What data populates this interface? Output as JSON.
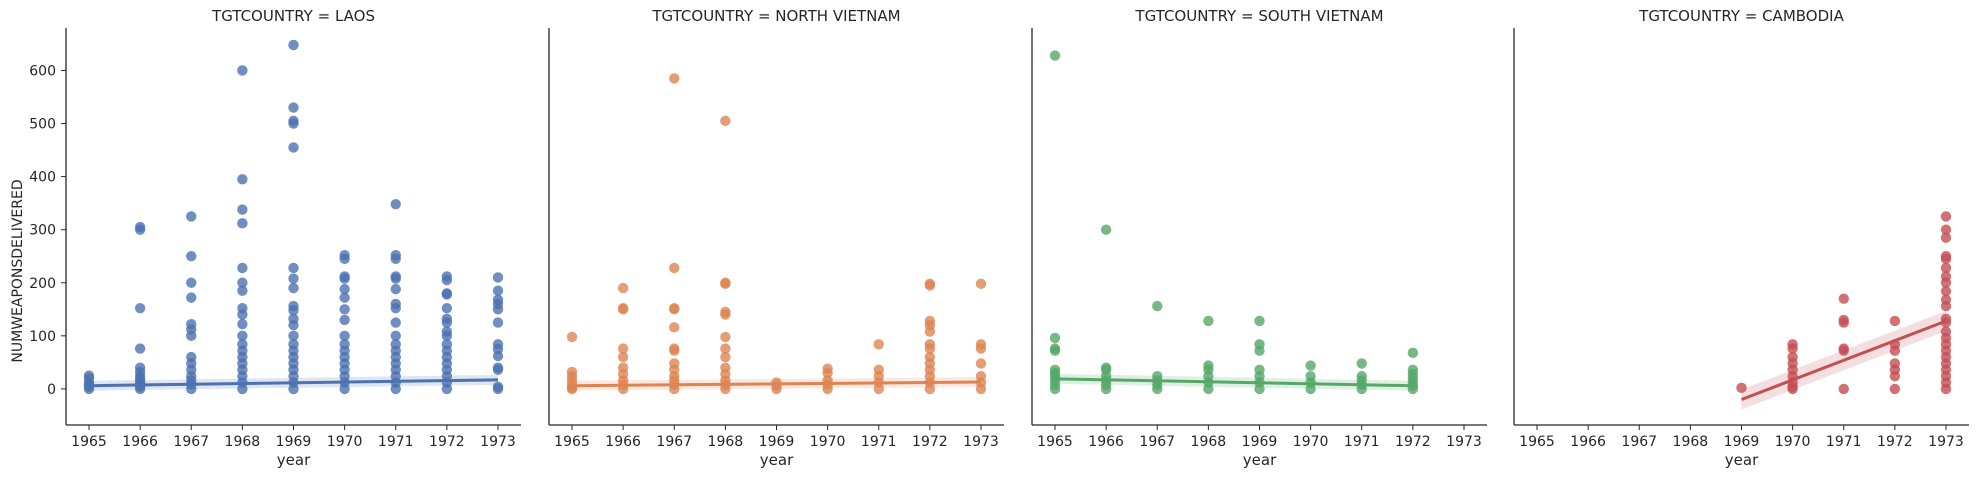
{
  "chart_data": {
    "type": "scatter",
    "x_label": "year",
    "y_label": "NUMWEAPONSDELIVERED",
    "xlim": [
      1964.55,
      1973.45
    ],
    "ylim": [
      -68,
      680
    ],
    "x_ticks": [
      "1965",
      "1966",
      "1967",
      "1968",
      "1969",
      "1970",
      "1971",
      "1972",
      "1973"
    ],
    "y_ticks": [
      0,
      100,
      200,
      300,
      400,
      500,
      600
    ],
    "grid": false,
    "panels": [
      {
        "title": "TGTCOUNTRY = LAOS",
        "color": "#4c72b0",
        "points": [
          [
            1965,
            25
          ],
          [
            1965,
            20
          ],
          [
            1965,
            12
          ],
          [
            1965,
            8
          ],
          [
            1965,
            4
          ],
          [
            1965,
            0
          ],
          [
            1966,
            305
          ],
          [
            1966,
            300
          ],
          [
            1966,
            152
          ],
          [
            1966,
            76
          ],
          [
            1966,
            40
          ],
          [
            1966,
            32
          ],
          [
            1966,
            24
          ],
          [
            1966,
            18
          ],
          [
            1966,
            12
          ],
          [
            1966,
            8
          ],
          [
            1966,
            4
          ],
          [
            1966,
            0
          ],
          [
            1967,
            325
          ],
          [
            1967,
            250
          ],
          [
            1967,
            200
          ],
          [
            1967,
            172
          ],
          [
            1967,
            122
          ],
          [
            1967,
            112
          ],
          [
            1967,
            100
          ],
          [
            1967,
            60
          ],
          [
            1967,
            48
          ],
          [
            1967,
            36
          ],
          [
            1967,
            24
          ],
          [
            1967,
            16
          ],
          [
            1967,
            8
          ],
          [
            1967,
            0
          ],
          [
            1968,
            600
          ],
          [
            1968,
            395
          ],
          [
            1968,
            338
          ],
          [
            1968,
            312
          ],
          [
            1968,
            228
          ],
          [
            1968,
            200
          ],
          [
            1968,
            185
          ],
          [
            1968,
            152
          ],
          [
            1968,
            140
          ],
          [
            1968,
            122
          ],
          [
            1968,
            100
          ],
          [
            1968,
            84
          ],
          [
            1968,
            72
          ],
          [
            1968,
            60
          ],
          [
            1968,
            48
          ],
          [
            1968,
            36
          ],
          [
            1968,
            24
          ],
          [
            1968,
            12
          ],
          [
            1968,
            0
          ],
          [
            1969,
            648
          ],
          [
            1969,
            530
          ],
          [
            1969,
            505
          ],
          [
            1969,
            500
          ],
          [
            1969,
            455
          ],
          [
            1969,
            228
          ],
          [
            1969,
            208
          ],
          [
            1969,
            190
          ],
          [
            1969,
            156
          ],
          [
            1969,
            148
          ],
          [
            1969,
            132
          ],
          [
            1969,
            120
          ],
          [
            1969,
            100
          ],
          [
            1969,
            84
          ],
          [
            1969,
            72
          ],
          [
            1969,
            60
          ],
          [
            1969,
            48
          ],
          [
            1969,
            36
          ],
          [
            1969,
            24
          ],
          [
            1969,
            12
          ],
          [
            1969,
            0
          ],
          [
            1970,
            252
          ],
          [
            1970,
            245
          ],
          [
            1970,
            212
          ],
          [
            1970,
            208
          ],
          [
            1970,
            188
          ],
          [
            1970,
            172
          ],
          [
            1970,
            150
          ],
          [
            1970,
            130
          ],
          [
            1970,
            100
          ],
          [
            1970,
            84
          ],
          [
            1970,
            72
          ],
          [
            1970,
            60
          ],
          [
            1970,
            48
          ],
          [
            1970,
            36
          ],
          [
            1970,
            24
          ],
          [
            1970,
            12
          ],
          [
            1970,
            0
          ],
          [
            1971,
            348
          ],
          [
            1971,
            252
          ],
          [
            1971,
            245
          ],
          [
            1971,
            212
          ],
          [
            1971,
            208
          ],
          [
            1971,
            188
          ],
          [
            1971,
            160
          ],
          [
            1971,
            152
          ],
          [
            1971,
            125
          ],
          [
            1971,
            100
          ],
          [
            1971,
            84
          ],
          [
            1971,
            72
          ],
          [
            1971,
            60
          ],
          [
            1971,
            48
          ],
          [
            1971,
            36
          ],
          [
            1971,
            24
          ],
          [
            1971,
            12
          ],
          [
            1971,
            0
          ],
          [
            1972,
            212
          ],
          [
            1972,
            205
          ],
          [
            1972,
            180
          ],
          [
            1972,
            178
          ],
          [
            1972,
            152
          ],
          [
            1972,
            132
          ],
          [
            1972,
            125
          ],
          [
            1972,
            108
          ],
          [
            1972,
            100
          ],
          [
            1972,
            84
          ],
          [
            1972,
            72
          ],
          [
            1972,
            60
          ],
          [
            1972,
            48
          ],
          [
            1972,
            36
          ],
          [
            1972,
            24
          ],
          [
            1972,
            12
          ],
          [
            1972,
            0
          ],
          [
            1973,
            210
          ],
          [
            1973,
            185
          ],
          [
            1973,
            168
          ],
          [
            1973,
            160
          ],
          [
            1973,
            150
          ],
          [
            1973,
            125
          ],
          [
            1973,
            84
          ],
          [
            1973,
            75
          ],
          [
            1973,
            62
          ],
          [
            1973,
            40
          ],
          [
            1973,
            36
          ],
          [
            1973,
            4
          ],
          [
            1973,
            0
          ]
        ],
        "fit": {
          "x": [
            1965,
            1973
          ],
          "y": [
            6,
            17
          ]
        }
      },
      {
        "title": "TGTCOUNTRY = NORTH VIETNAM",
        "color": "#dd8452",
        "points": [
          [
            1965,
            98
          ],
          [
            1965,
            32
          ],
          [
            1965,
            24
          ],
          [
            1965,
            16
          ],
          [
            1965,
            8
          ],
          [
            1965,
            2
          ],
          [
            1965,
            0
          ],
          [
            1966,
            190
          ],
          [
            1966,
            152
          ],
          [
            1966,
            150
          ],
          [
            1966,
            76
          ],
          [
            1966,
            60
          ],
          [
            1966,
            40
          ],
          [
            1966,
            28
          ],
          [
            1966,
            16
          ],
          [
            1966,
            8
          ],
          [
            1966,
            0
          ],
          [
            1967,
            585
          ],
          [
            1967,
            228
          ],
          [
            1967,
            152
          ],
          [
            1967,
            150
          ],
          [
            1967,
            116
          ],
          [
            1967,
            76
          ],
          [
            1967,
            72
          ],
          [
            1967,
            48
          ],
          [
            1967,
            36
          ],
          [
            1967,
            24
          ],
          [
            1967,
            16
          ],
          [
            1967,
            8
          ],
          [
            1967,
            0
          ],
          [
            1968,
            505
          ],
          [
            1968,
            200
          ],
          [
            1968,
            198
          ],
          [
            1968,
            145
          ],
          [
            1968,
            140
          ],
          [
            1968,
            98
          ],
          [
            1968,
            76
          ],
          [
            1968,
            60
          ],
          [
            1968,
            40
          ],
          [
            1968,
            28
          ],
          [
            1968,
            16
          ],
          [
            1968,
            8
          ],
          [
            1968,
            0
          ],
          [
            1969,
            12
          ],
          [
            1969,
            6
          ],
          [
            1969,
            0
          ],
          [
            1970,
            38
          ],
          [
            1970,
            30
          ],
          [
            1970,
            16
          ],
          [
            1970,
            8
          ],
          [
            1970,
            0
          ],
          [
            1971,
            84
          ],
          [
            1971,
            36
          ],
          [
            1971,
            24
          ],
          [
            1971,
            12
          ],
          [
            1971,
            0
          ],
          [
            1972,
            198
          ],
          [
            1972,
            195
          ],
          [
            1972,
            128
          ],
          [
            1972,
            120
          ],
          [
            1972,
            108
          ],
          [
            1972,
            84
          ],
          [
            1972,
            76
          ],
          [
            1972,
            60
          ],
          [
            1972,
            48
          ],
          [
            1972,
            36
          ],
          [
            1972,
            24
          ],
          [
            1972,
            12
          ],
          [
            1972,
            0
          ],
          [
            1973,
            198
          ],
          [
            1973,
            84
          ],
          [
            1973,
            76
          ],
          [
            1973,
            48
          ],
          [
            1973,
            24
          ],
          [
            1973,
            12
          ],
          [
            1973,
            0
          ]
        ],
        "fit": {
          "x": [
            1965,
            1973
          ],
          "y": [
            6,
            13
          ]
        }
      },
      {
        "title": "TGTCOUNTRY = SOUTH VIETNAM",
        "color": "#55a868",
        "points": [
          [
            1965,
            628
          ],
          [
            1965,
            96
          ],
          [
            1965,
            76
          ],
          [
            1965,
            72
          ],
          [
            1965,
            36
          ],
          [
            1965,
            30
          ],
          [
            1965,
            24
          ],
          [
            1965,
            16
          ],
          [
            1965,
            8
          ],
          [
            1965,
            0
          ],
          [
            1966,
            300
          ],
          [
            1966,
            40
          ],
          [
            1966,
            36
          ],
          [
            1966,
            24
          ],
          [
            1966,
            16
          ],
          [
            1966,
            8
          ],
          [
            1966,
            0
          ],
          [
            1967,
            156
          ],
          [
            1967,
            24
          ],
          [
            1967,
            16
          ],
          [
            1967,
            8
          ],
          [
            1967,
            0
          ],
          [
            1968,
            128
          ],
          [
            1968,
            44
          ],
          [
            1968,
            36
          ],
          [
            1968,
            24
          ],
          [
            1968,
            12
          ],
          [
            1968,
            0
          ],
          [
            1969,
            128
          ],
          [
            1969,
            84
          ],
          [
            1969,
            72
          ],
          [
            1969,
            36
          ],
          [
            1969,
            24
          ],
          [
            1969,
            12
          ],
          [
            1969,
            0
          ],
          [
            1970,
            44
          ],
          [
            1970,
            24
          ],
          [
            1970,
            12
          ],
          [
            1970,
            0
          ],
          [
            1971,
            48
          ],
          [
            1971,
            24
          ],
          [
            1971,
            16
          ],
          [
            1971,
            8
          ],
          [
            1971,
            0
          ],
          [
            1972,
            68
          ],
          [
            1972,
            36
          ],
          [
            1972,
            28
          ],
          [
            1972,
            20
          ],
          [
            1972,
            12
          ],
          [
            1972,
            6
          ],
          [
            1972,
            0
          ]
        ],
        "fit": {
          "x": [
            1965,
            1972
          ],
          "y": [
            19,
            6
          ]
        }
      },
      {
        "title": "TGTCOUNTRY = CAMBODIA",
        "color": "#c44e52",
        "points": [
          [
            1969,
            2
          ],
          [
            1970,
            84
          ],
          [
            1970,
            76
          ],
          [
            1970,
            60
          ],
          [
            1970,
            48
          ],
          [
            1970,
            36
          ],
          [
            1970,
            24
          ],
          [
            1970,
            12
          ],
          [
            1970,
            4
          ],
          [
            1970,
            0
          ],
          [
            1971,
            170
          ],
          [
            1971,
            130
          ],
          [
            1971,
            125
          ],
          [
            1971,
            76
          ],
          [
            1971,
            72
          ],
          [
            1971,
            0
          ],
          [
            1972,
            128
          ],
          [
            1972,
            84
          ],
          [
            1972,
            72
          ],
          [
            1972,
            48
          ],
          [
            1972,
            36
          ],
          [
            1972,
            24
          ],
          [
            1972,
            0
          ],
          [
            1973,
            325
          ],
          [
            1973,
            300
          ],
          [
            1973,
            285
          ],
          [
            1973,
            250
          ],
          [
            1973,
            245
          ],
          [
            1973,
            228
          ],
          [
            1973,
            212
          ],
          [
            1973,
            200
          ],
          [
            1973,
            184
          ],
          [
            1973,
            168
          ],
          [
            1973,
            156
          ],
          [
            1973,
            132
          ],
          [
            1973,
            125
          ],
          [
            1973,
            108
          ],
          [
            1973,
            96
          ],
          [
            1973,
            84
          ],
          [
            1973,
            72
          ],
          [
            1973,
            60
          ],
          [
            1973,
            48
          ],
          [
            1973,
            36
          ],
          [
            1973,
            24
          ],
          [
            1973,
            12
          ],
          [
            1973,
            0
          ]
        ],
        "fit": {
          "x": [
            1969,
            1973
          ],
          "y": [
            -20,
            128
          ]
        }
      }
    ]
  }
}
